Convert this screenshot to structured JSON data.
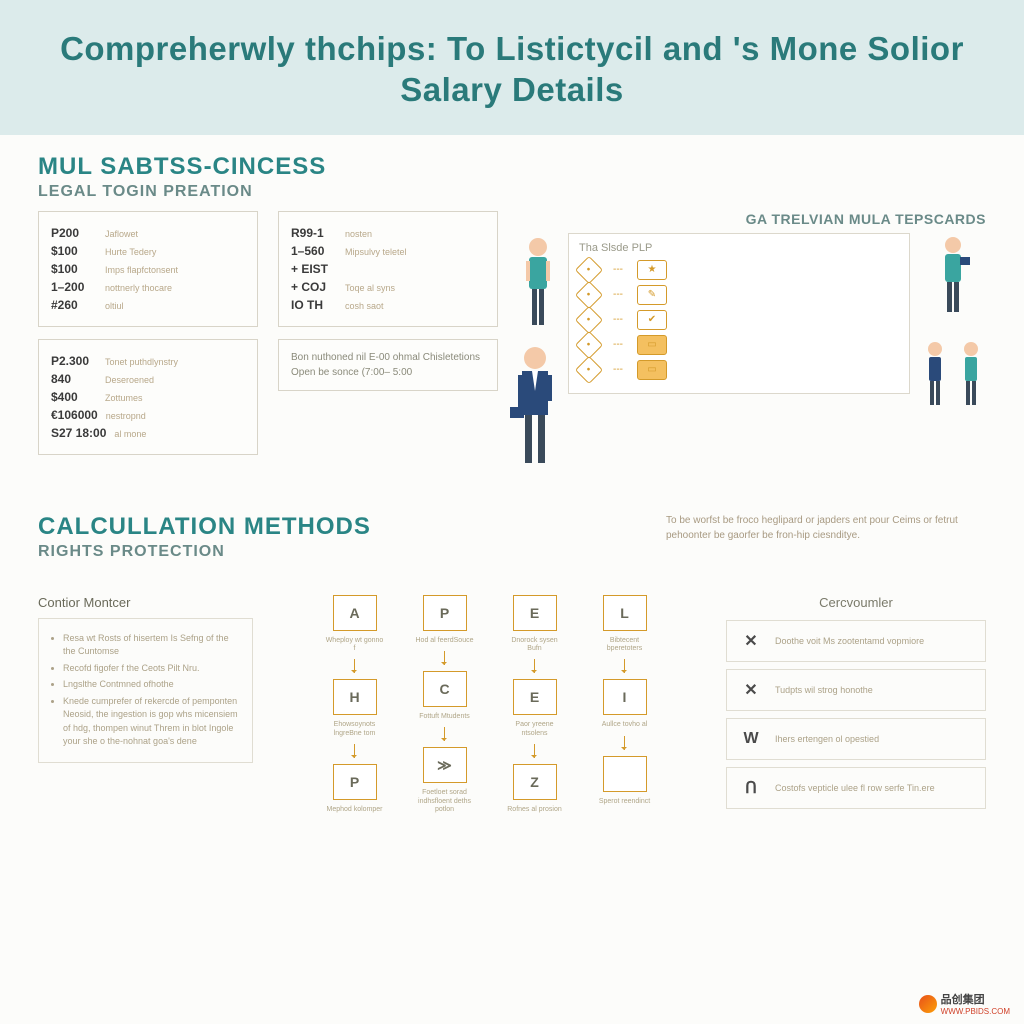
{
  "colors": {
    "header_bg": "#dcebeb",
    "title": "#2a7a7a",
    "section": "#2a8585",
    "sub": "#6a8a88",
    "border": "#d8d4c8",
    "accent": "#d49a2a",
    "accent_fill": "#f4c060",
    "text_muted": "#aca288",
    "body_bg": "#fcfcfa",
    "person_suit": "#2a4a7a",
    "person_teal": "#3aa5a0",
    "person_skin": "#f4c9a8"
  },
  "header": {
    "title": "Compreherwly thchips: To Listictycil and 's Mone Solior Salary Details"
  },
  "section1": {
    "title": "MUL SABTSS-CINCESS",
    "subtitle": "LEGAL TOGIN PREATION",
    "right_title": "GA TRELVIAN MULA TEPSCARDS",
    "box_a": [
      {
        "val": "P200",
        "lab": "Jaflowet"
      },
      {
        "val": "$100",
        "lab": "Hurte Tedery"
      },
      {
        "val": "$100",
        "lab": "Imps flapfctonsent"
      },
      {
        "val": "1–200",
        "lab": "nottnerly thocare"
      },
      {
        "val": "#260",
        "lab": "oltiul"
      }
    ],
    "box_b": [
      {
        "val": "R99-1",
        "lab": "nosten"
      },
      {
        "val": "1–560",
        "lab": "Mipsulvy teletel"
      },
      {
        "val": "+ EIST",
        "lab": ""
      },
      {
        "val": "+ COJ",
        "lab": "Toqe al syns"
      },
      {
        "val": "IO TH",
        "lab": "cosh saot"
      }
    ],
    "box_c": [
      {
        "val": "P2.300",
        "lab": "Tonet puthdlynstry"
      },
      {
        "val": "840",
        "lab": "Deseroened"
      },
      {
        "val": "$400",
        "lab": "Zottumes"
      },
      {
        "val": "€106000",
        "lab": "nestropnd"
      },
      {
        "val": "S27 18:00",
        "lab": "al mone"
      }
    ],
    "box_d": "Bon nuthoned nil E-00 ohmal Chisletetions Open be sonce (7:00– 5:00",
    "flow_title": "Tha Slsde PLP",
    "flow_rows": [
      {
        "l": "◆",
        "r": "★"
      },
      {
        "l": "◆",
        "r": "✎"
      },
      {
        "l": "◆",
        "r": "✔"
      },
      {
        "l": "◆",
        "r": "▭"
      },
      {
        "l": "◆",
        "r": "▭"
      }
    ]
  },
  "section2": {
    "title": "CALCULLATION METHODS",
    "subtitle": "RIGHTS PROTECTION",
    "desc": "To be worfst be froco heglipard or japders ent pour Ceims or fetrut pehoonter be gaorfer be fron-hip ciesnditye.",
    "left_h": "Contior Montcer",
    "bullets": [
      "Resa wt Rosts of hisertem Is Sefng of the the Cuntomse",
      "Recofd figofer f the Ceots Pilt Nru.",
      "Lngslthe Contmned ofhothe",
      "Knede cumprefer of rekercde of pemponten Neosid, the ingestion is gop whs micensiem of hdg, thompen winut Threm in blot Ingole your she o the-nohnat goa's dene"
    ],
    "flow_cols": [
      {
        "top": "A",
        "tl": "Wheploy wt gonno f",
        "mid": "H",
        "ml": "Ehowsoynots lngreBne tom",
        "bot": "P",
        "bl": "Mephod kolomper"
      },
      {
        "top": "P",
        "tl": "Hod al feerdSouce",
        "mid": "C",
        "ml": "Fottuft Mtudents",
        "bot": "≫",
        "bl": "Foetloet sorad indhsfloent deths potlon"
      },
      {
        "top": "E",
        "tl": "Dnorock sysen Bufn",
        "mid": "E",
        "ml": "Paor yreene ntsolens",
        "bot": "Z",
        "bl": "Rofnes al prosion"
      },
      {
        "top": "L",
        "tl": "Bibtecent bperetoters",
        "mid": "I",
        "ml": "Aullce tovho al",
        "bot": "",
        "bl": "Sperot reendinct"
      }
    ],
    "right_h": "Cercvoumler",
    "certs": [
      {
        "ico": "✕",
        "txt": "Doothe voit Ms zootentamd vopmiore"
      },
      {
        "ico": "✕",
        "txt": "Tudpts wil strog honothe"
      },
      {
        "ico": "W",
        "txt": "Ihers ertengen ol opestied"
      },
      {
        "ico": "Ո",
        "txt": "Costofs vepticle ulee fl row serfe Tin.ere"
      }
    ]
  },
  "watermark": {
    "brand": "品创集团",
    "url": "WWW.PBIDS.COM"
  }
}
